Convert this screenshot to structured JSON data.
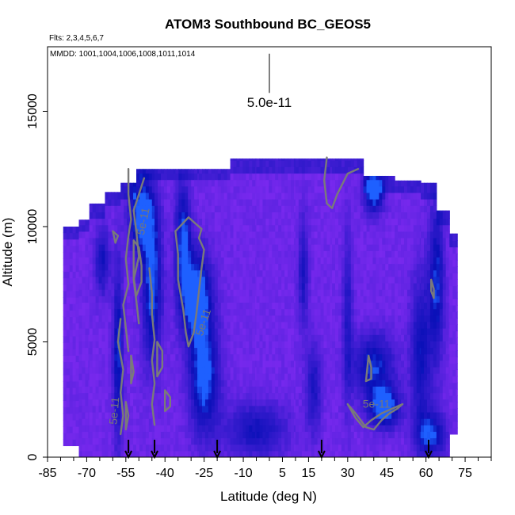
{
  "chart_data": {
    "type": "heatmap",
    "title": "ATOM3 Southbound BC_GEOS5",
    "flights_note": "Flts: 2,3,4,5,6,7",
    "dates_note": "MMDD: 1001,1004,1006,1008,1011,1014",
    "xlabel": "Latitude (deg N)",
    "ylabel": "Altitude (m)",
    "xlim": [
      -85,
      85
    ],
    "ylim": [
      0,
      17800
    ],
    "x_ticks": [
      -85,
      -70,
      -55,
      -40,
      -25,
      -10,
      5,
      15,
      30,
      45,
      60,
      75
    ],
    "y_ticks": [
      0,
      5000,
      10000,
      15000
    ],
    "scale_bar": {
      "label": "5.0e-11",
      "x": 0,
      "y_top": 17500,
      "y_bottom": 15800
    },
    "contour_level_label": "5e-11",
    "contour_labels": [
      {
        "text": "5e-11",
        "x": -47,
        "y": 10200,
        "angle": -78
      },
      {
        "text": "5e-11",
        "x": -24,
        "y": 5800,
        "angle": -72
      },
      {
        "text": "5e-11",
        "x": 41,
        "y": 2150,
        "angle": 0
      },
      {
        "text": "5e-11",
        "x": -58,
        "y": 2000,
        "angle": -85
      }
    ],
    "flight_arrows_x": [
      -54,
      -44,
      -20,
      20,
      61
    ],
    "columns": [
      {
        "x0": -79,
        "x1": -73,
        "top": 10000,
        "bottom": 500
      },
      {
        "x0": -73,
        "x1": -69,
        "top": 10300,
        "bottom": 0
      },
      {
        "x0": -69,
        "x1": -63,
        "top": 11000,
        "bottom": 0
      },
      {
        "x0": -63,
        "x1": -57,
        "top": 11500,
        "bottom": 0
      },
      {
        "x0": -57,
        "x1": -51,
        "top": 11900,
        "bottom": 0
      },
      {
        "x0": -51,
        "x1": -44,
        "top": 12500,
        "bottom": 0
      },
      {
        "x0": -44,
        "x1": -36,
        "top": 12500,
        "bottom": 0
      },
      {
        "x0": -36,
        "x1": -27,
        "top": 12500,
        "bottom": 0
      },
      {
        "x0": -27,
        "x1": -15,
        "top": 12500,
        "bottom": 0
      },
      {
        "x0": -15,
        "x1": -5,
        "top": 12950,
        "bottom": 0
      },
      {
        "x0": -5,
        "x1": 10,
        "top": 12950,
        "bottom": 0
      },
      {
        "x0": 10,
        "x1": 24,
        "top": 12950,
        "bottom": 0
      },
      {
        "x0": 24,
        "x1": 36,
        "top": 12950,
        "bottom": 0
      },
      {
        "x0": 36,
        "x1": 48,
        "top": 12200,
        "bottom": 0
      },
      {
        "x0": 48,
        "x1": 58,
        "top": 12000,
        "bottom": 0
      },
      {
        "x0": 58,
        "x1": 64,
        "top": 11900,
        "bottom": 0
      },
      {
        "x0": 64,
        "x1": 69,
        "top": 10700,
        "bottom": 0
      },
      {
        "x0": 69,
        "x1": 72,
        "top": 9700,
        "bottom": 1000
      }
    ],
    "color_scale": {
      "low": "#9b30ff",
      "mid": "#3a1cd0",
      "high": "#0a10b8",
      "peak": "#1e60ff"
    },
    "hotspots": [
      {
        "x": -49,
        "y": 10500,
        "rx": 5,
        "ry": 1700,
        "strength": 0.9
      },
      {
        "x": -45,
        "y": 7500,
        "rx": 4,
        "ry": 3500,
        "strength": 0.8
      },
      {
        "x": -33,
        "y": 9500,
        "rx": 3,
        "ry": 2500,
        "strength": 0.75
      },
      {
        "x": -28,
        "y": 7000,
        "rx": 6,
        "ry": 2000,
        "strength": 1.0
      },
      {
        "x": -25,
        "y": 3500,
        "rx": 6,
        "ry": 2500,
        "strength": 0.85
      },
      {
        "x": -58,
        "y": 4500,
        "rx": 2,
        "ry": 4000,
        "strength": 0.7
      },
      {
        "x": -64,
        "y": 8500,
        "rx": 3,
        "ry": 1500,
        "strength": 0.55
      },
      {
        "x": 40,
        "y": 11500,
        "rx": 4,
        "ry": 900,
        "strength": 0.9
      },
      {
        "x": 44,
        "y": 2200,
        "rx": 6,
        "ry": 900,
        "strength": 1.0
      },
      {
        "x": 40,
        "y": 4000,
        "rx": 8,
        "ry": 1400,
        "strength": 0.7
      },
      {
        "x": 64,
        "y": 7500,
        "rx": 3,
        "ry": 3500,
        "strength": 0.7
      },
      {
        "x": 58,
        "y": 4500,
        "rx": 4,
        "ry": 3500,
        "strength": 0.6
      },
      {
        "x": 13,
        "y": 8000,
        "rx": 2,
        "ry": 2500,
        "strength": 0.5
      },
      {
        "x": 30,
        "y": 6000,
        "rx": 2,
        "ry": 4000,
        "strength": 0.45
      },
      {
        "x": 17,
        "y": 3000,
        "rx": 3,
        "ry": 2000,
        "strength": 0.5
      },
      {
        "x": -5,
        "y": 1200,
        "rx": 12,
        "ry": 1200,
        "strength": 0.55
      },
      {
        "x": 62,
        "y": 1000,
        "rx": 6,
        "ry": 1000,
        "strength": 0.7
      }
    ],
    "contours": [
      [
        [
          -48,
          12100
        ],
        [
          -50,
          11400
        ],
        [
          -52,
          10700
        ],
        [
          -51,
          9800
        ],
        [
          -50,
          8700
        ],
        [
          -52,
          7700
        ],
        [
          -51,
          6800
        ],
        [
          -50,
          5800
        ]
      ],
      [
        [
          -36,
          9800
        ],
        [
          -31,
          10400
        ],
        [
          -28,
          10100
        ],
        [
          -26,
          9900
        ],
        [
          -27,
          9500
        ],
        [
          -25,
          9000
        ],
        [
          -26,
          8200
        ],
        [
          -27,
          7200
        ],
        [
          -28,
          6200
        ],
        [
          -29,
          5400
        ],
        [
          -31,
          4800
        ],
        [
          -32,
          5400
        ],
        [
          -33,
          6400
        ],
        [
          -35,
          7700
        ],
        [
          -35,
          8800
        ],
        [
          -36,
          9800
        ]
      ],
      [
        [
          -54,
          12500
        ],
        [
          -54,
          11400
        ],
        [
          -53,
          10300
        ],
        [
          -54,
          9600
        ],
        [
          -55,
          8600
        ],
        [
          -54,
          7500
        ],
        [
          -56,
          6600
        ],
        [
          -55,
          5600
        ],
        [
          -54,
          4600
        ]
      ],
      [
        [
          -60,
          9800
        ],
        [
          -59,
          9300
        ],
        [
          -58,
          9600
        ],
        [
          -60,
          9800
        ]
      ],
      [
        [
          -52,
          9400
        ],
        [
          -50,
          9100
        ],
        [
          -49,
          8300
        ],
        [
          -49,
          7600
        ],
        [
          -51,
          7000
        ],
        [
          -52,
          7800
        ],
        [
          -52,
          9400
        ]
      ],
      [
        [
          -46,
          8200
        ],
        [
          -45,
          7100
        ],
        [
          -45,
          6200
        ],
        [
          -44,
          5100
        ],
        [
          -45,
          4200
        ],
        [
          -44,
          3200
        ],
        [
          -45,
          2300
        ],
        [
          -44,
          1400
        ]
      ],
      [
        [
          -43,
          5000
        ],
        [
          -41,
          4600
        ],
        [
          -41,
          3900
        ],
        [
          -43,
          3500
        ],
        [
          -43,
          5000
        ]
      ],
      [
        [
          -40,
          2900
        ],
        [
          -38,
          2600
        ],
        [
          -38,
          2200
        ],
        [
          -40,
          2000
        ],
        [
          -40,
          2900
        ]
      ],
      [
        [
          -57,
          6000
        ],
        [
          -58,
          5000
        ],
        [
          -56,
          3800
        ],
        [
          -57,
          2800
        ],
        [
          -56,
          1800
        ],
        [
          -57,
          1000
        ]
      ],
      [
        [
          -53,
          4400
        ],
        [
          -52,
          3700
        ],
        [
          -53,
          3200
        ],
        [
          -53,
          4400
        ]
      ],
      [
        [
          -55,
          2400
        ],
        [
          -54,
          1800
        ],
        [
          -55,
          1200
        ],
        [
          -55,
          2400
        ]
      ],
      [
        [
          22,
          13000
        ],
        [
          21,
          12000
        ],
        [
          22,
          11000
        ],
        [
          24,
          10800
        ],
        [
          26,
          11400
        ],
        [
          30,
          12300
        ],
        [
          34,
          12500
        ]
      ],
      [
        [
          30,
          2300
        ],
        [
          33,
          1900
        ],
        [
          37,
          1300
        ],
        [
          40,
          1200
        ],
        [
          43,
          1600
        ],
        [
          46,
          1900
        ],
        [
          49,
          2100
        ],
        [
          51,
          2300
        ],
        [
          47,
          2100
        ],
        [
          43,
          1900
        ],
        [
          39,
          1600
        ],
        [
          36,
          1300
        ],
        [
          33,
          1700
        ],
        [
          30,
          2300
        ]
      ],
      [
        [
          38,
          4400
        ],
        [
          39,
          3900
        ],
        [
          39,
          3400
        ],
        [
          37,
          3300
        ],
        [
          38,
          4400
        ]
      ],
      [
        [
          62,
          7700
        ],
        [
          63,
          7300
        ],
        [
          63,
          6900
        ],
        [
          62,
          7200
        ],
        [
          62,
          7700
        ]
      ]
    ]
  }
}
